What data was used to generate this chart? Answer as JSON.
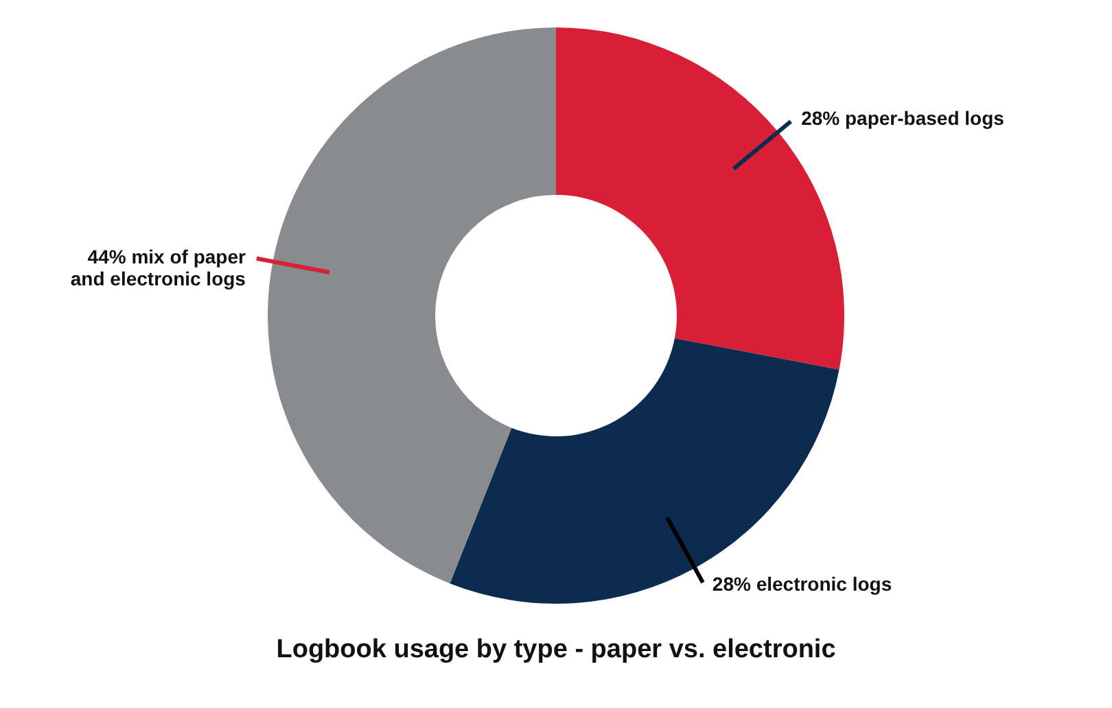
{
  "chart_data": {
    "type": "donut",
    "title": "Logbook usage by type - paper vs. electronic",
    "categories": [
      "paper-based logs",
      "electronic logs",
      "mix of paper\nand electronic logs"
    ],
    "values": [
      28,
      28,
      44
    ],
    "value_labels": [
      "28%",
      "28%",
      "44%"
    ],
    "colors": [
      "#d91f35",
      "#0d2b4e",
      "#8a8b8e"
    ],
    "legend": false
  }
}
